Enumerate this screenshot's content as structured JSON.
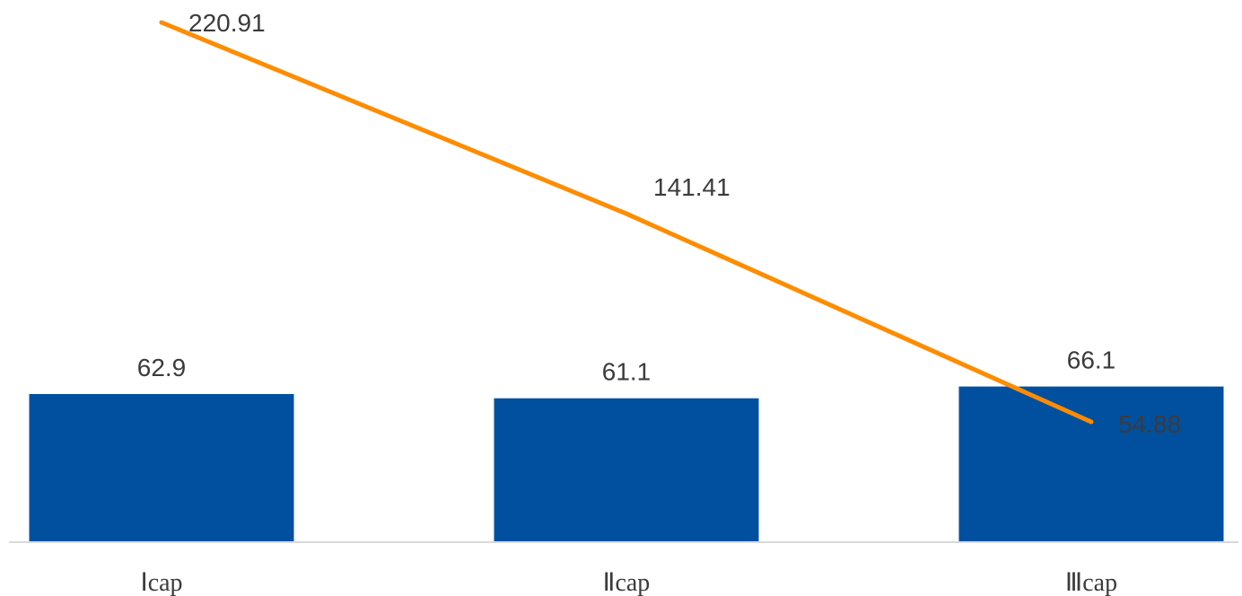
{
  "chart_data": {
    "type": "bar",
    "categories": [
      "Ⅰcap",
      "Ⅱcap",
      "Ⅲcap"
    ],
    "series": [
      {
        "type": "bar",
        "values": [
          62.9,
          61.1,
          66.1
        ],
        "labels": [
          "62.9",
          "61.1",
          "66.1"
        ],
        "color": "#0050a0"
      },
      {
        "type": "line",
        "values": [
          220.91,
          141.41,
          54.88
        ],
        "labels": [
          "220.91",
          "141.41",
          "54.88"
        ],
        "color": "#ff8c00"
      }
    ],
    "bar_axis_range": [
      0,
      200
    ],
    "line_axis_range": [
      40,
      225
    ],
    "grid": false,
    "legend": "none",
    "title": "",
    "xlabel": "",
    "ylabel": ""
  }
}
